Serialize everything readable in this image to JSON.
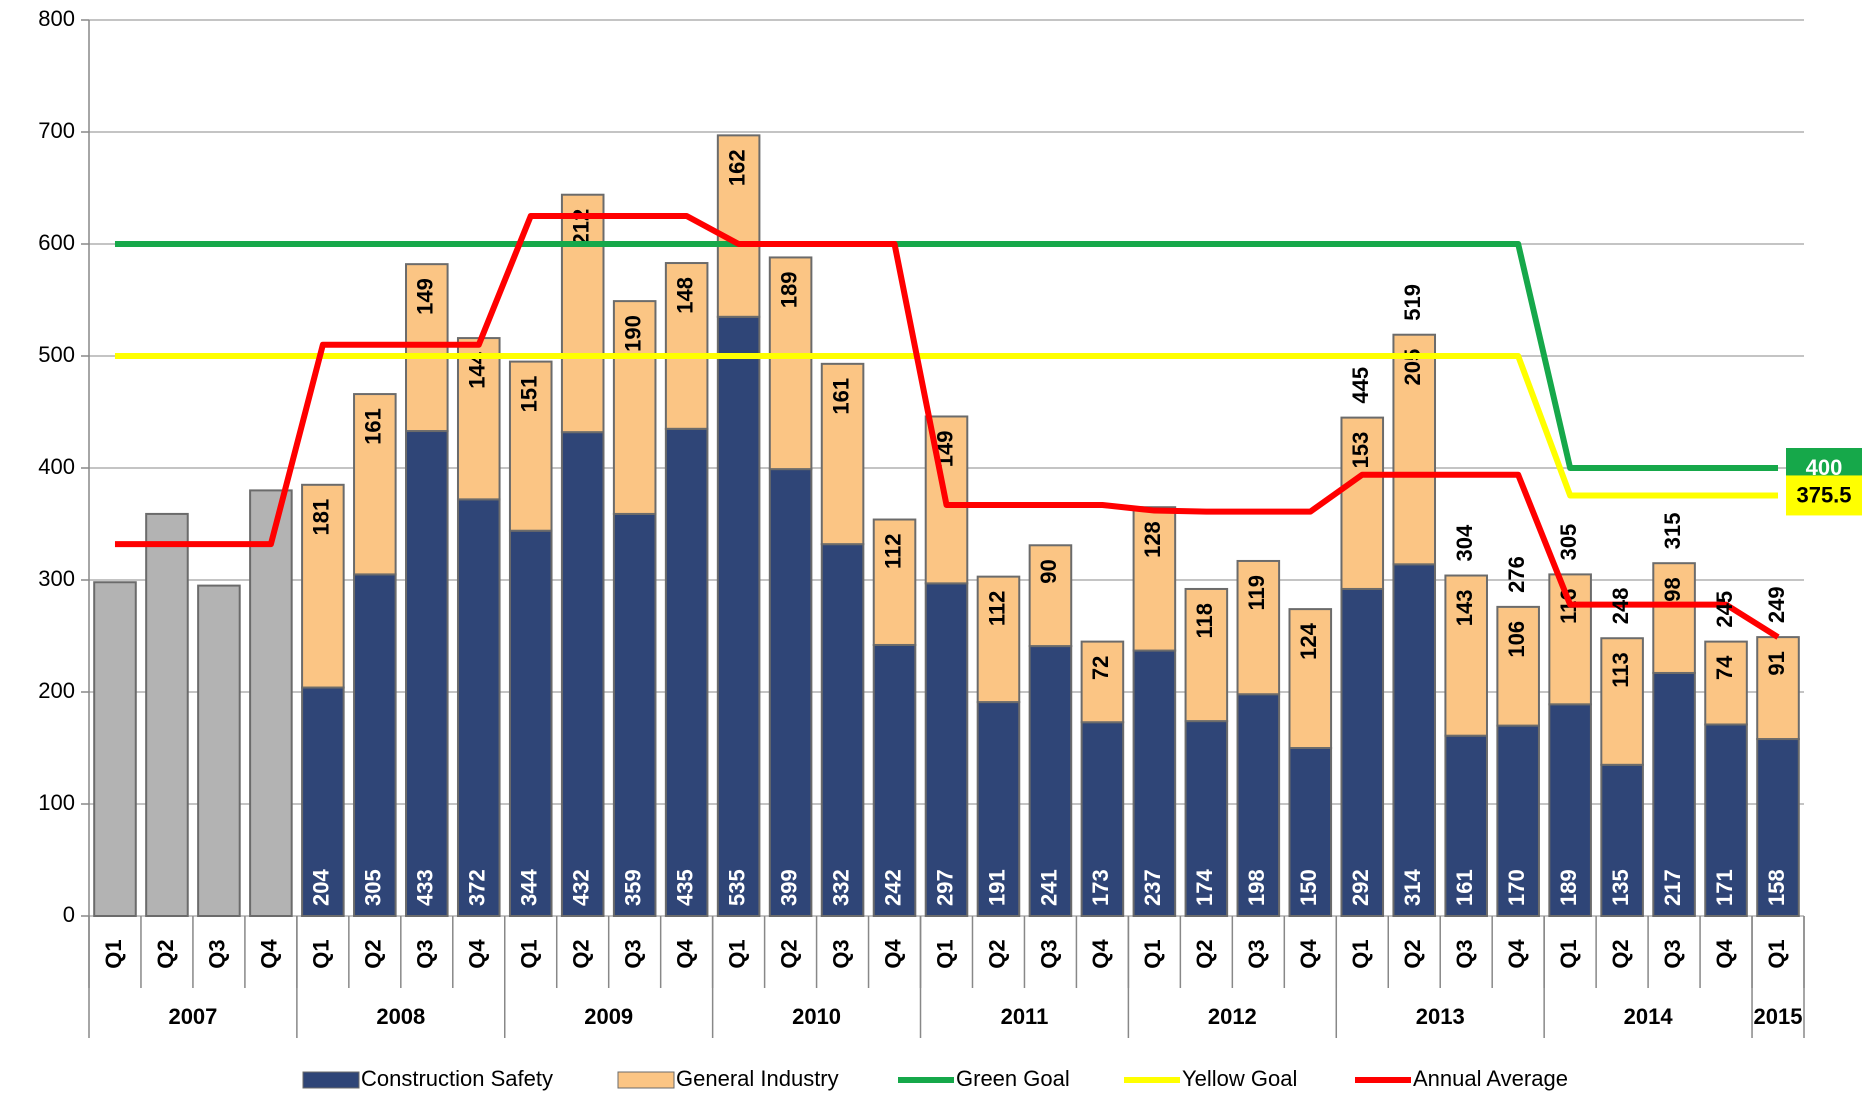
{
  "chart_data": {
    "type": "bar",
    "categories": [
      "Q1",
      "Q2",
      "Q3",
      "Q4",
      "Q1",
      "Q2",
      "Q3",
      "Q4",
      "Q1",
      "Q2",
      "Q3",
      "Q4",
      "Q1",
      "Q2",
      "Q3",
      "Q4",
      "Q1",
      "Q2",
      "Q3",
      "Q4",
      "Q1",
      "Q2",
      "Q3",
      "Q4",
      "Q1",
      "Q2",
      "Q3",
      "Q4",
      "Q1",
      "Q2",
      "Q3",
      "Q4",
      "Q1"
    ],
    "category_years": [
      "2007",
      "2007",
      "2007",
      "2007",
      "2008",
      "2008",
      "2008",
      "2008",
      "2009",
      "2009",
      "2009",
      "2009",
      "2010",
      "2010",
      "2010",
      "2010",
      "2011",
      "2011",
      "2011",
      "2011",
      "2012",
      "2012",
      "2012",
      "2012",
      "2013",
      "2013",
      "2013",
      "2013",
      "2014",
      "2014",
      "2014",
      "2014",
      "2015"
    ],
    "series": [
      {
        "type": "bar",
        "color": "#b3b3b3",
        "values": [
          298,
          359,
          295,
          380,
          null,
          null,
          null,
          null,
          null,
          null,
          null,
          null,
          null,
          null,
          null,
          null,
          null,
          null,
          null,
          null,
          null,
          null,
          null,
          null,
          null,
          null,
          null,
          null,
          null,
          null,
          null,
          null,
          null
        ]
      },
      {
        "type": "bar",
        "name": "Construction Safety",
        "color": "#2f4577",
        "values": [
          null,
          null,
          null,
          null,
          204,
          305,
          433,
          372,
          344,
          432,
          359,
          435,
          535,
          399,
          332,
          242,
          297,
          191,
          241,
          173,
          237,
          174,
          198,
          150,
          292,
          314,
          161,
          170,
          189,
          135,
          217,
          171,
          158
        ]
      },
      {
        "type": "bar",
        "name": "General Industry",
        "color": "#fbc584",
        "values": [
          null,
          null,
          null,
          null,
          181,
          161,
          149,
          144,
          151,
          212,
          190,
          148,
          162,
          189,
          161,
          112,
          149,
          112,
          90,
          72,
          128,
          118,
          119,
          124,
          153,
          205,
          143,
          106,
          116,
          113,
          98,
          74,
          91
        ]
      },
      {
        "type": "line",
        "name": "Green Goal",
        "color": "#16a84a",
        "values": [
          600,
          600,
          600,
          600,
          600,
          600,
          600,
          600,
          600,
          600,
          600,
          600,
          600,
          600,
          600,
          600,
          600,
          600,
          600,
          600,
          600,
          600,
          600,
          600,
          600,
          600,
          600,
          600,
          400,
          400,
          400,
          400,
          400
        ]
      },
      {
        "type": "line",
        "name": "Yellow Goal",
        "color": "#ffff00",
        "values": [
          500,
          500,
          500,
          500,
          500,
          500,
          500,
          500,
          500,
          500,
          500,
          500,
          500,
          500,
          500,
          500,
          500,
          500,
          500,
          500,
          500,
          500,
          500,
          500,
          500,
          500,
          500,
          500,
          375.5,
          375.5,
          375.5,
          375.5,
          375.5
        ]
      },
      {
        "type": "line",
        "name": "Annual Average",
        "color": "#ff0000",
        "values": [
          332,
          332,
          332,
          332,
          510,
          510,
          510,
          510,
          625,
          625,
          625,
          625,
          600,
          600,
          600,
          600,
          367,
          367,
          367,
          367,
          362,
          361,
          361,
          361,
          394,
          394,
          394,
          394,
          278,
          278,
          278,
          278,
          249
        ]
      }
    ],
    "total_labels": [
      null,
      null,
      null,
      null,
      null,
      null,
      null,
      null,
      null,
      null,
      null,
      null,
      null,
      null,
      null,
      null,
      null,
      null,
      null,
      null,
      null,
      null,
      null,
      null,
      445,
      519,
      304,
      276,
      305,
      248,
      315,
      245,
      249
    ],
    "ylim": [
      0,
      800
    ],
    "yticks": [
      0,
      100,
      200,
      300,
      400,
      500,
      600,
      700,
      800
    ],
    "grid": true
  }
}
